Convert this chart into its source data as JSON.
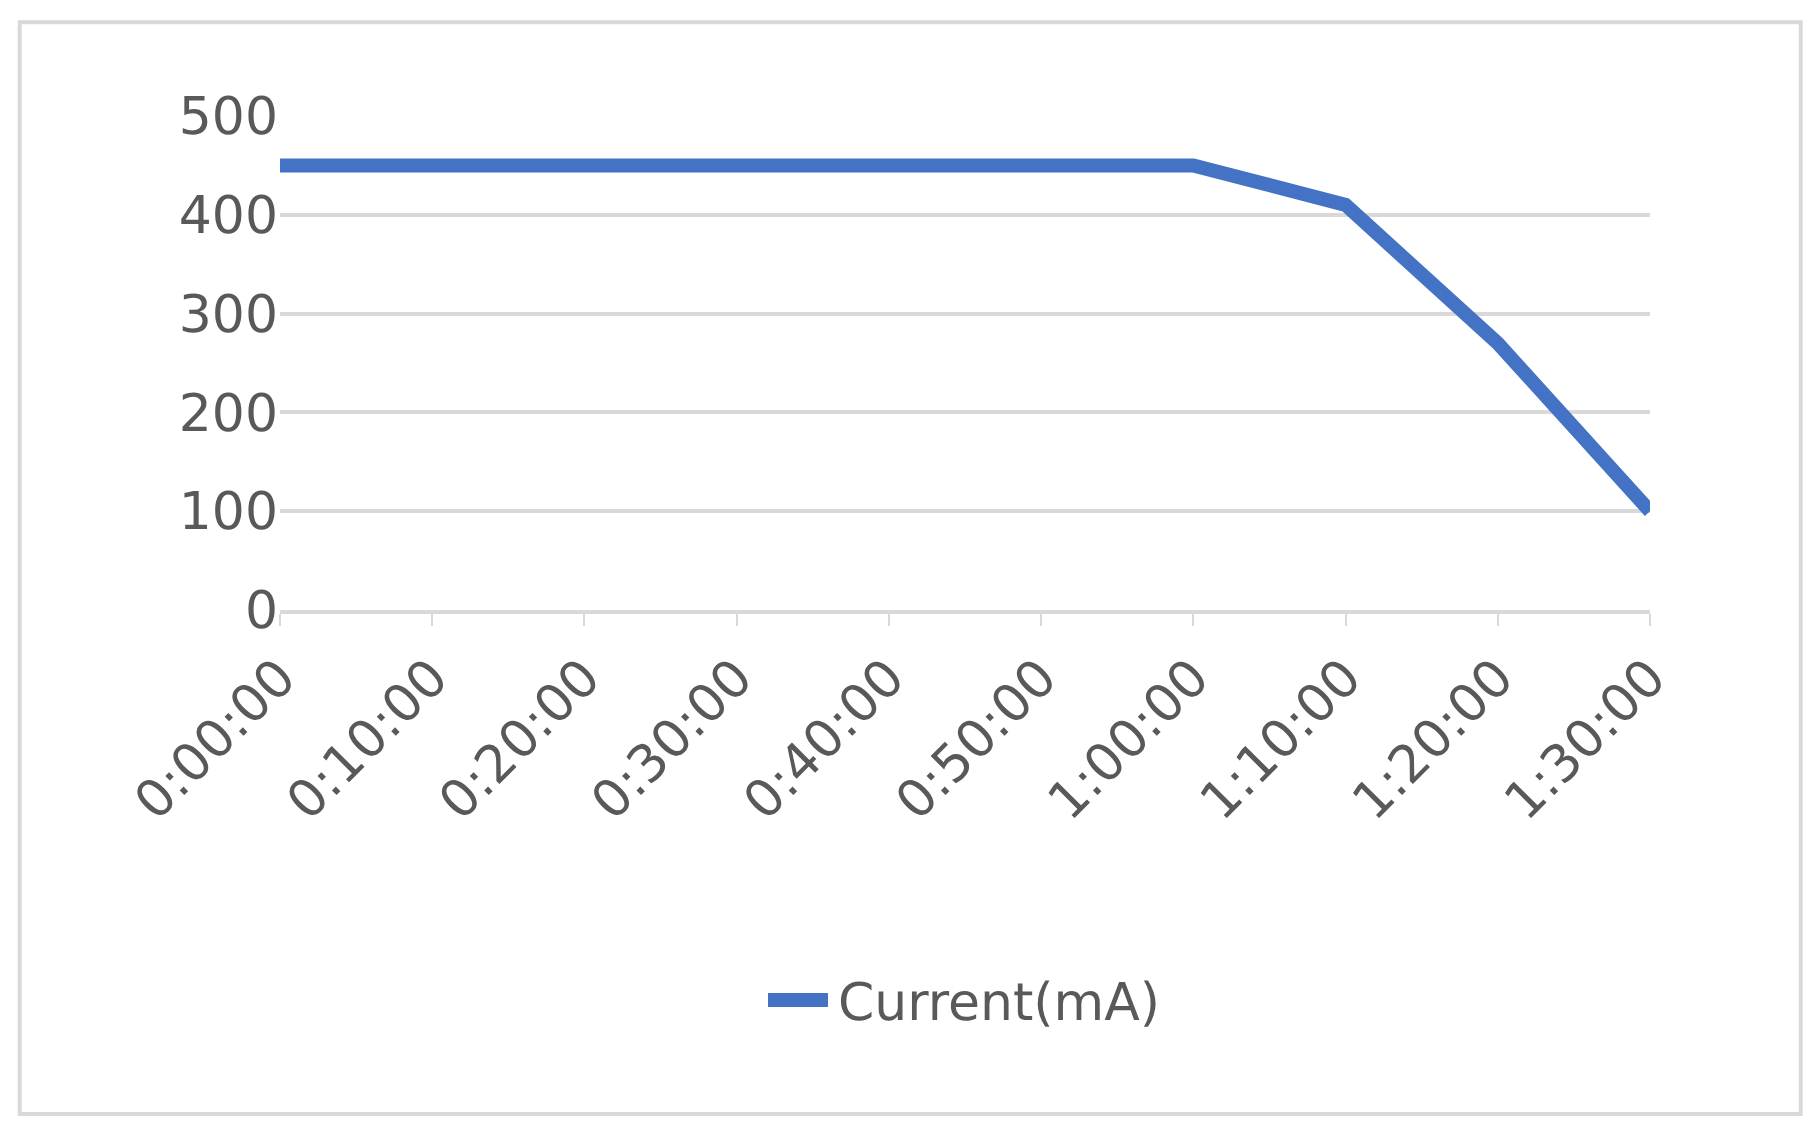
{
  "chart_data": {
    "type": "line",
    "categories": [
      "0:00:00",
      "0:10:00",
      "0:20:00",
      "0:30:00",
      "0:40:00",
      "0:50:00",
      "1:00:00",
      "1:10:00",
      "1:20:00",
      "1:30:00"
    ],
    "series": [
      {
        "name": "Current(mA)",
        "color": "#4472c4",
        "values": [
          450,
          450,
          450,
          450,
          450,
          450,
          450,
          410,
          270,
          100
        ]
      }
    ],
    "ylim": [
      0,
      500
    ],
    "yticks": [
      0,
      100,
      200,
      300,
      400,
      500
    ],
    "grid": "y",
    "legend": "bottom",
    "marker": "none",
    "line_style": "solid"
  }
}
